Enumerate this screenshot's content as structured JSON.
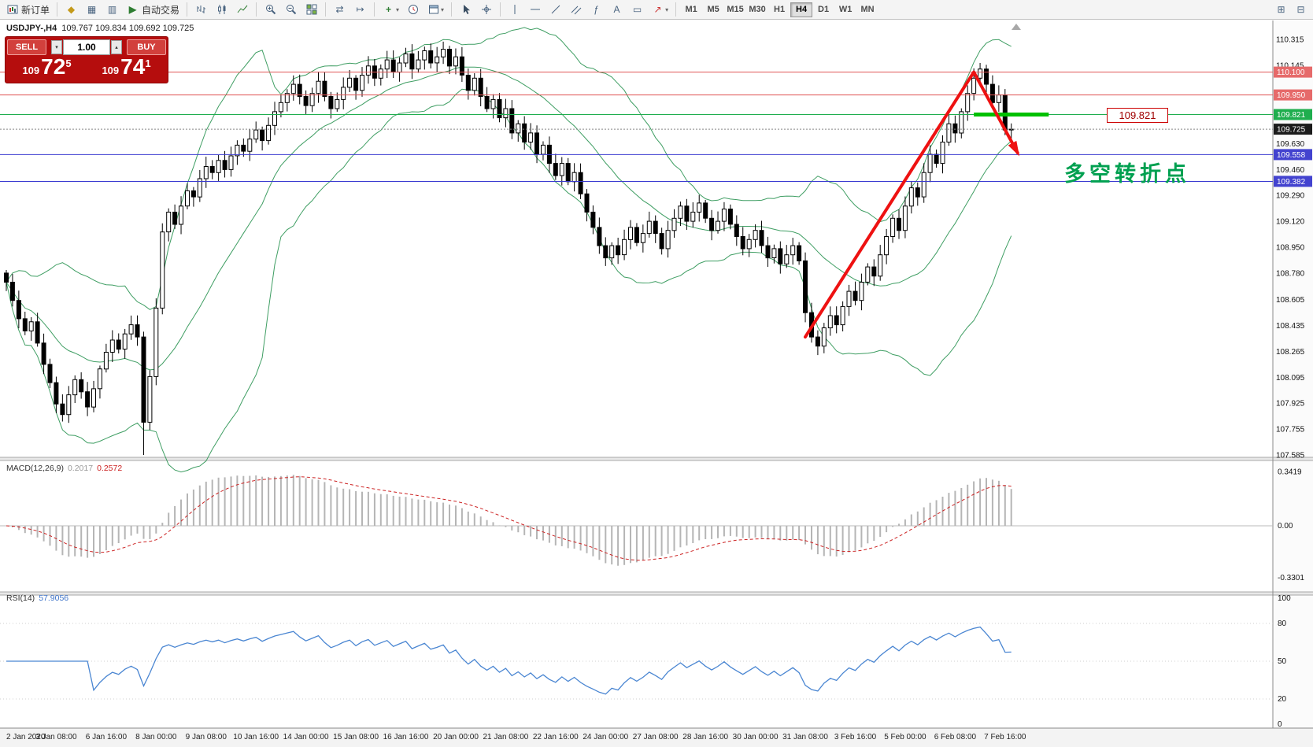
{
  "toolbar": {
    "new_order_label": "新订单",
    "autotrading_label": "自动交易",
    "timeframes": [
      "M1",
      "M5",
      "M15",
      "M30",
      "H1",
      "H4",
      "D1",
      "W1",
      "MN"
    ],
    "active_timeframe": "H4",
    "glyphs": {
      "symbols": "◆",
      "market_watch": "▦",
      "navigator": "▥",
      "play": "▶",
      "indicator_plus": "+",
      "caret": "▾",
      "autoscroll": "⇄",
      "chart_shift": "↦",
      "text_tool": "A",
      "arrow_tool": "↗",
      "fibo": "ƒ",
      "label_tool": "▭",
      "spin_up": "▴",
      "spin_down": "▾",
      "window1": "⊞",
      "window2": "⊟"
    }
  },
  "chart_header": {
    "symbol": "USDJPY-,H4",
    "ohlc": "109.767 109.834 109.692 109.725"
  },
  "order_panel": {
    "sell_label": "SELL",
    "buy_label": "BUY",
    "volume": "1.00",
    "bid_prefix": "109",
    "bid_big": "72",
    "bid_sup": "5",
    "ask_prefix": "109",
    "ask_big": "74",
    "ask_sup": "1"
  },
  "annotations": {
    "price_flag": "109.821",
    "turning_point_text": "多空转折点",
    "arrow": [
      {
        "i": 128,
        "p": 108.36
      },
      {
        "i": 155,
        "p": 110.1
      },
      {
        "i": 162,
        "p": 109.57
      }
    ],
    "green_segment": {
      "i1": 155,
      "i2": 167,
      "p": 109.821
    }
  },
  "price_axis": {
    "labels": [
      "110.315",
      "110.145",
      "109.630",
      "109.460",
      "109.290",
      "109.120",
      "108.950",
      "108.780",
      "108.605",
      "108.435",
      "108.265",
      "108.095",
      "107.925",
      "107.755",
      "107.585"
    ],
    "tags": [
      {
        "text": "110.100",
        "price": 110.1,
        "bg": "#e66a6a"
      },
      {
        "text": "109.950",
        "price": 109.95,
        "bg": "#e66a6a"
      },
      {
        "text": "109.821",
        "price": 109.821,
        "bg": "#1fae4e"
      },
      {
        "text": "109.725",
        "price": 109.725,
        "bg": "#1b1b1b"
      },
      {
        "text": "109.558",
        "price": 109.558,
        "bg": "#4343cf"
      },
      {
        "text": "109.382",
        "price": 109.382,
        "bg": "#4343cf"
      }
    ]
  },
  "macd_panel": {
    "label": "MACD(12,26,9)",
    "value_main": "0.2017",
    "value_signal": "0.2572",
    "axis_labels": [
      {
        "text": "0.3419",
        "v": 0.3419
      },
      {
        "text": "0.00",
        "v": 0
      },
      {
        "text": "-0.3301",
        "v": -0.3301
      }
    ]
  },
  "rsi_panel": {
    "label": "RSI(14)",
    "value": "57.9056",
    "axis_labels": [
      {
        "text": "100",
        "v": 100
      },
      {
        "text": "80",
        "v": 80
      },
      {
        "text": "50",
        "v": 50
      },
      {
        "text": "20",
        "v": 20
      },
      {
        "text": "0",
        "v": 0
      }
    ],
    "levels": [
      80,
      50,
      20
    ]
  },
  "colors": {
    "band": "#3f9e63",
    "candle_up": "#ffffff",
    "candle_down": "#000000",
    "hline_red": "#e05555",
    "hline_green": "#1fae4e",
    "hline_blue": "#3a3ad0",
    "macd_hist": "#b5b5b5",
    "macd_signal": "#cc2222",
    "rsi_line": "#4a86d2",
    "arrow": "#ee1111",
    "green_segment": "#00c000",
    "annotation_green": "#00a050"
  },
  "chart_data": {
    "type": "candlestick",
    "symbol": "USDJPY",
    "timeframe": "H4",
    "title": "USDJPY-,H4",
    "price_range": [
      107.585,
      110.315
    ],
    "open_first": 108.78,
    "closes": [
      108.72,
      108.6,
      108.48,
      108.4,
      108.46,
      108.32,
      108.18,
      108.06,
      107.92,
      107.85,
      107.98,
      108.08,
      108.0,
      107.9,
      108.02,
      108.15,
      108.26,
      108.34,
      108.28,
      108.38,
      108.44,
      108.36,
      107.8,
      108.1,
      108.55,
      109.05,
      109.18,
      109.1,
      109.22,
      109.32,
      109.28,
      109.4,
      109.48,
      109.44,
      109.52,
      109.46,
      109.55,
      109.62,
      109.58,
      109.66,
      109.72,
      109.65,
      109.75,
      109.84,
      109.9,
      109.96,
      110.02,
      109.94,
      109.88,
      109.96,
      110.04,
      109.94,
      109.86,
      109.92,
      110.0,
      110.06,
      109.98,
      110.08,
      110.14,
      110.06,
      110.12,
      110.18,
      110.1,
      110.16,
      110.22,
      110.12,
      110.18,
      110.24,
      110.16,
      110.2,
      110.25,
      110.14,
      110.2,
      110.08,
      109.98,
      110.06,
      109.94,
      109.86,
      109.92,
      109.8,
      109.86,
      109.7,
      109.76,
      109.64,
      109.7,
      109.56,
      109.62,
      109.5,
      109.42,
      109.5,
      109.38,
      109.44,
      109.3,
      109.18,
      109.08,
      108.96,
      108.88,
      108.96,
      108.9,
      109.0,
      109.08,
      108.98,
      109.04,
      109.12,
      109.04,
      108.94,
      109.06,
      109.14,
      109.22,
      109.12,
      109.18,
      109.24,
      109.14,
      109.06,
      109.12,
      109.2,
      109.1,
      109.02,
      108.94,
      109.0,
      109.06,
      108.96,
      108.88,
      108.94,
      108.84,
      108.9,
      108.96,
      108.86,
      108.52,
      108.36,
      108.3,
      108.42,
      108.5,
      108.44,
      108.56,
      108.66,
      108.6,
      108.72,
      108.82,
      108.76,
      108.9,
      109.02,
      109.14,
      109.06,
      109.22,
      109.34,
      109.28,
      109.44,
      109.56,
      109.5,
      109.64,
      109.76,
      109.7,
      109.84,
      109.96,
      110.06,
      110.12,
      110.02,
      109.9,
      109.95,
      109.72,
      109.725
    ],
    "wick_overrides": [
      {
        "i": 22,
        "low": 107.585
      },
      {
        "i": 70,
        "high": 110.3
      },
      {
        "i": 156,
        "high": 110.16
      }
    ],
    "bollinger": {
      "period": 20,
      "deviation": 2
    },
    "hlines": [
      {
        "p": 110.1,
        "color": "#e05555"
      },
      {
        "p": 109.95,
        "color": "#e05555"
      },
      {
        "p": 109.821,
        "color": "#1fae4e"
      },
      {
        "p": 109.725,
        "color": "#888888",
        "dash": "2,2"
      },
      {
        "p": 109.558,
        "color": "#3a3ad0"
      },
      {
        "p": 109.382,
        "color": "#3a3ad0"
      }
    ],
    "time_labels": [
      "2 Jan 2020",
      "3 Jan 08:00",
      "6 Jan 16:00",
      "8 Jan 00:00",
      "9 Jan 08:00",
      "10 Jan 16:00",
      "14 Jan 00:00",
      "15 Jan 08:00",
      "16 Jan 16:00",
      "20 Jan 00:00",
      "21 Jan 08:00",
      "22 Jan 16:00",
      "24 Jan 00:00",
      "27 Jan 08:00",
      "28 Jan 16:00",
      "30 Jan 00:00",
      "31 Jan 08:00",
      "3 Feb 16:00",
      "5 Feb 00:00",
      "6 Feb 08:00",
      "7 Feb 16:00"
    ]
  }
}
